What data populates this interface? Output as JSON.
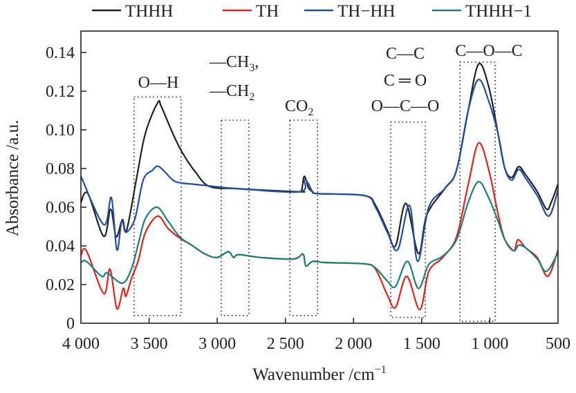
{
  "chart_data": {
    "type": "line",
    "title": "",
    "xlabel": "Wavenumber /cm",
    "xlabel_sup": "−1",
    "ylabel": "Absorbance /a.u.",
    "xlim": [
      4000,
      500
    ],
    "ylim": [
      0,
      0.14
    ],
    "grid": false,
    "legend_position": "top",
    "x_ticks": [
      {
        "value": 4000,
        "label": "4 000"
      },
      {
        "value": 3500,
        "label": "3 500"
      },
      {
        "value": 3000,
        "label": "3 000"
      },
      {
        "value": 2500,
        "label": "2 500"
      },
      {
        "value": 2000,
        "label": "2 000"
      },
      {
        "value": 1500,
        "label": "1 500"
      },
      {
        "value": 1000,
        "label": "1 000"
      },
      {
        "value": 500,
        "label": "500"
      }
    ],
    "y_ticks": [
      {
        "value": 0,
        "label": "0"
      },
      {
        "value": 0.02,
        "label": "0.02"
      },
      {
        "value": 0.04,
        "label": "0.04"
      },
      {
        "value": 0.06,
        "label": "0.06"
      },
      {
        "value": 0.08,
        "label": "0.08"
      },
      {
        "value": 0.1,
        "label": "0.10"
      },
      {
        "value": 0.12,
        "label": "0.12"
      },
      {
        "value": 0.14,
        "label": "0.14"
      }
    ],
    "series": [
      {
        "name": "THHH",
        "color": "#231f20",
        "x": [
          4000,
          3949,
          3833,
          3782,
          3741,
          3696,
          3665,
          3594,
          3528,
          3437,
          3410,
          3325,
          3259,
          3158,
          3056,
          2853,
          2397,
          2380,
          2361,
          2330,
          2300,
          2260,
          1920,
          1839,
          1752,
          1692,
          1616,
          1524,
          1463,
          1331,
          1245,
          1159,
          1083,
          1007,
          940,
          890,
          839,
          789,
          738,
          652,
          585,
          550,
          500
        ],
        "y": [
          0.0625,
          0.067,
          0.045,
          0.059,
          0.0447,
          0.0536,
          0.048,
          0.074,
          0.098,
          0.114,
          0.112,
          0.098,
          0.0886,
          0.078,
          0.0707,
          0.0696,
          0.068,
          0.069,
          0.076,
          0.07,
          0.068,
          0.067,
          0.066,
          0.061,
          0.048,
          0.04,
          0.062,
          0.036,
          0.056,
          0.0696,
          0.079,
          0.11,
          0.134,
          0.122,
          0.098,
          0.08,
          0.0754,
          0.081,
          0.0768,
          0.068,
          0.059,
          0.0625,
          0.072
        ]
      },
      {
        "name": "TH",
        "color": "#e2231a",
        "x": [
          4000,
          3960,
          3833,
          3787,
          3736,
          3690,
          3670,
          3630,
          3579,
          3528,
          3437,
          3361,
          3274,
          3188,
          3087,
          3000,
          2919,
          2880,
          2843,
          2681,
          2440,
          2371,
          2350,
          2300,
          2209,
          1920,
          1839,
          1752,
          1692,
          1610,
          1514,
          1448,
          1346,
          1245,
          1159,
          1083,
          1007,
          940,
          890,
          824,
          794,
          738,
          652,
          575,
          500
        ],
        "y": [
          0.035,
          0.0375,
          0.0154,
          0.028,
          0.0075,
          0.018,
          0.014,
          0.023,
          0.0325,
          0.0468,
          0.0554,
          0.049,
          0.044,
          0.0404,
          0.0357,
          0.034,
          0.037,
          0.034,
          0.0355,
          0.034,
          0.0332,
          0.0357,
          0.0296,
          0.032,
          0.0314,
          0.0307,
          0.028,
          0.0146,
          0.0082,
          0.0243,
          0.007,
          0.0268,
          0.034,
          0.0446,
          0.0718,
          0.0932,
          0.079,
          0.0564,
          0.0432,
          0.0375,
          0.0432,
          0.039,
          0.034,
          0.0243,
          0.0379
        ]
      },
      {
        "name": "TH−HH",
        "color": "#1f4e9e",
        "x": [
          4000,
          3833,
          3777,
          3736,
          3700,
          3670,
          3604,
          3543,
          3477,
          3427,
          3325,
          3259,
          3190,
          3056,
          2853,
          2397,
          2361,
          2330,
          2300,
          2260,
          1920,
          1839,
          1752,
          1676,
          1590,
          1529,
          1448,
          1331,
          1245,
          1159,
          1083,
          1007,
          940,
          890,
          839,
          789,
          738,
          652,
          568,
          500
        ],
        "y": [
          0.076,
          0.051,
          0.065,
          0.038,
          0.053,
          0.047,
          0.054,
          0.074,
          0.079,
          0.081,
          0.074,
          0.0725,
          0.072,
          0.071,
          0.0696,
          0.068,
          0.074,
          0.072,
          0.068,
          0.067,
          0.066,
          0.06,
          0.047,
          0.038,
          0.061,
          0.032,
          0.06,
          0.0696,
          0.079,
          0.11,
          0.126,
          0.1146,
          0.098,
          0.08,
          0.074,
          0.0796,
          0.075,
          0.066,
          0.0554,
          0.069
        ]
      },
      {
        "name": "THHH−1",
        "color": "#1a7f78",
        "x": [
          4000,
          3960,
          3848,
          3807,
          3696,
          3630,
          3579,
          3528,
          3442,
          3361,
          3274,
          3188,
          3087,
          3000,
          2919,
          2880,
          2843,
          2681,
          2440,
          2371,
          2350,
          2300,
          2209,
          1920,
          1839,
          1752,
          1692,
          1605,
          1524,
          1448,
          1346,
          1245,
          1159,
          1083,
          1007,
          940,
          890,
          824,
          789,
          738,
          652,
          585,
          500
        ],
        "y": [
          0.0314,
          0.032,
          0.0243,
          0.026,
          0.0207,
          0.028,
          0.041,
          0.054,
          0.06,
          0.0528,
          0.0446,
          0.0404,
          0.0357,
          0.034,
          0.037,
          0.034,
          0.0355,
          0.034,
          0.0332,
          0.0357,
          0.0296,
          0.032,
          0.0314,
          0.0307,
          0.0286,
          0.0218,
          0.019,
          0.032,
          0.018,
          0.0304,
          0.0347,
          0.0432,
          0.0625,
          0.0732,
          0.0646,
          0.0528,
          0.0432,
          0.0375,
          0.0404,
          0.039,
          0.0332,
          0.0268,
          0.0364
        ]
      }
    ],
    "regions": [
      {
        "x": [
          3610,
          3265
        ],
        "y": [
          0.004,
          0.117
        ]
      },
      {
        "x": [
          2970,
          2767
        ],
        "y": [
          0.004,
          0.105
        ]
      },
      {
        "x": [
          2467,
          2264
        ],
        "y": [
          0.004,
          0.105
        ]
      },
      {
        "x": [
          1727,
          1473
        ],
        "y": [
          0.003,
          0.104
        ]
      },
      {
        "x": [
          1220,
          961
        ],
        "y": [
          0.001,
          0.135
        ]
      }
    ],
    "annotations": {
      "oh": "O—H",
      "ch3": "—CH",
      "ch3_sub": "3",
      "ch3_comma": ",",
      "ch2": "—CH",
      "ch2_sub": "2",
      "co2": "CO",
      "co2_sub": "2",
      "cc": "C—C",
      "c_eq_o": "C ═ O",
      "oco": "O—C—O",
      "coc": "C—O—C"
    }
  }
}
